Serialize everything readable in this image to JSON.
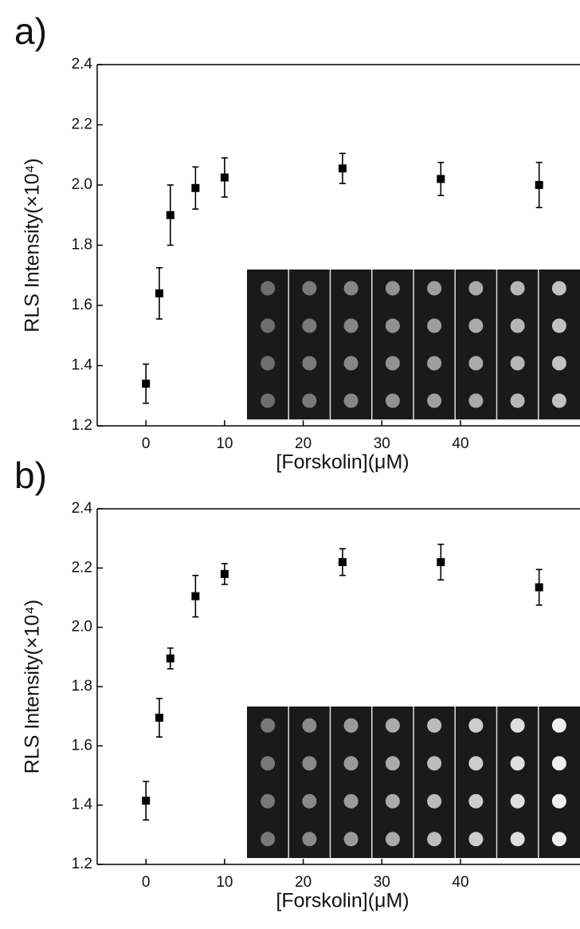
{
  "chart_data": [
    {
      "type": "scatter",
      "panel_label": "a)",
      "x_label": "[Forskolin](μM)",
      "y_label": "RLS Intensity(×10⁴)",
      "x": [
        0,
        1.7,
        3.1,
        6.3,
        10,
        25,
        37.5,
        50
      ],
      "values": [
        1.34,
        1.64,
        1.9,
        1.99,
        2.025,
        2.055,
        2.02,
        2.0
      ],
      "errors": [
        0.065,
        0.085,
        0.1,
        0.07,
        0.065,
        0.05,
        0.055,
        0.075
      ],
      "color": "#000000",
      "xlim": [
        -6.2,
        55.2
      ],
      "xticks": [
        0,
        10,
        20,
        30,
        40
      ],
      "ylim": [
        1.2,
        2.4
      ],
      "yticks": [
        1.2,
        1.4,
        1.6,
        1.8,
        {
          "value": 2,
          "label": "2.0"
        },
        2.2,
        2.4
      ]
    },
    {
      "type": "scatter",
      "panel_label": "b)",
      "x_label": "[Forskolin](μM)",
      "y_label": "RLS Intensity(×10⁴)",
      "x": [
        0,
        1.7,
        3.1,
        6.3,
        10,
        25,
        37.5,
        50
      ],
      "values": [
        1.415,
        1.695,
        1.895,
        2.105,
        2.18,
        2.22,
        2.22,
        2.135
      ],
      "errors": [
        0.065,
        0.065,
        0.035,
        0.07,
        0.035,
        0.045,
        0.06,
        0.06
      ],
      "color": "#000000",
      "xlim": [
        -6.2,
        55.2
      ],
      "xticks": [
        0,
        10,
        20,
        30,
        40
      ],
      "ylim": [
        1.2,
        2.4
      ],
      "yticks": [
        1.2,
        1.4,
        1.6,
        1.8,
        {
          "value": 2,
          "label": "2.0"
        },
        2.2,
        2.4
      ]
    }
  ]
}
